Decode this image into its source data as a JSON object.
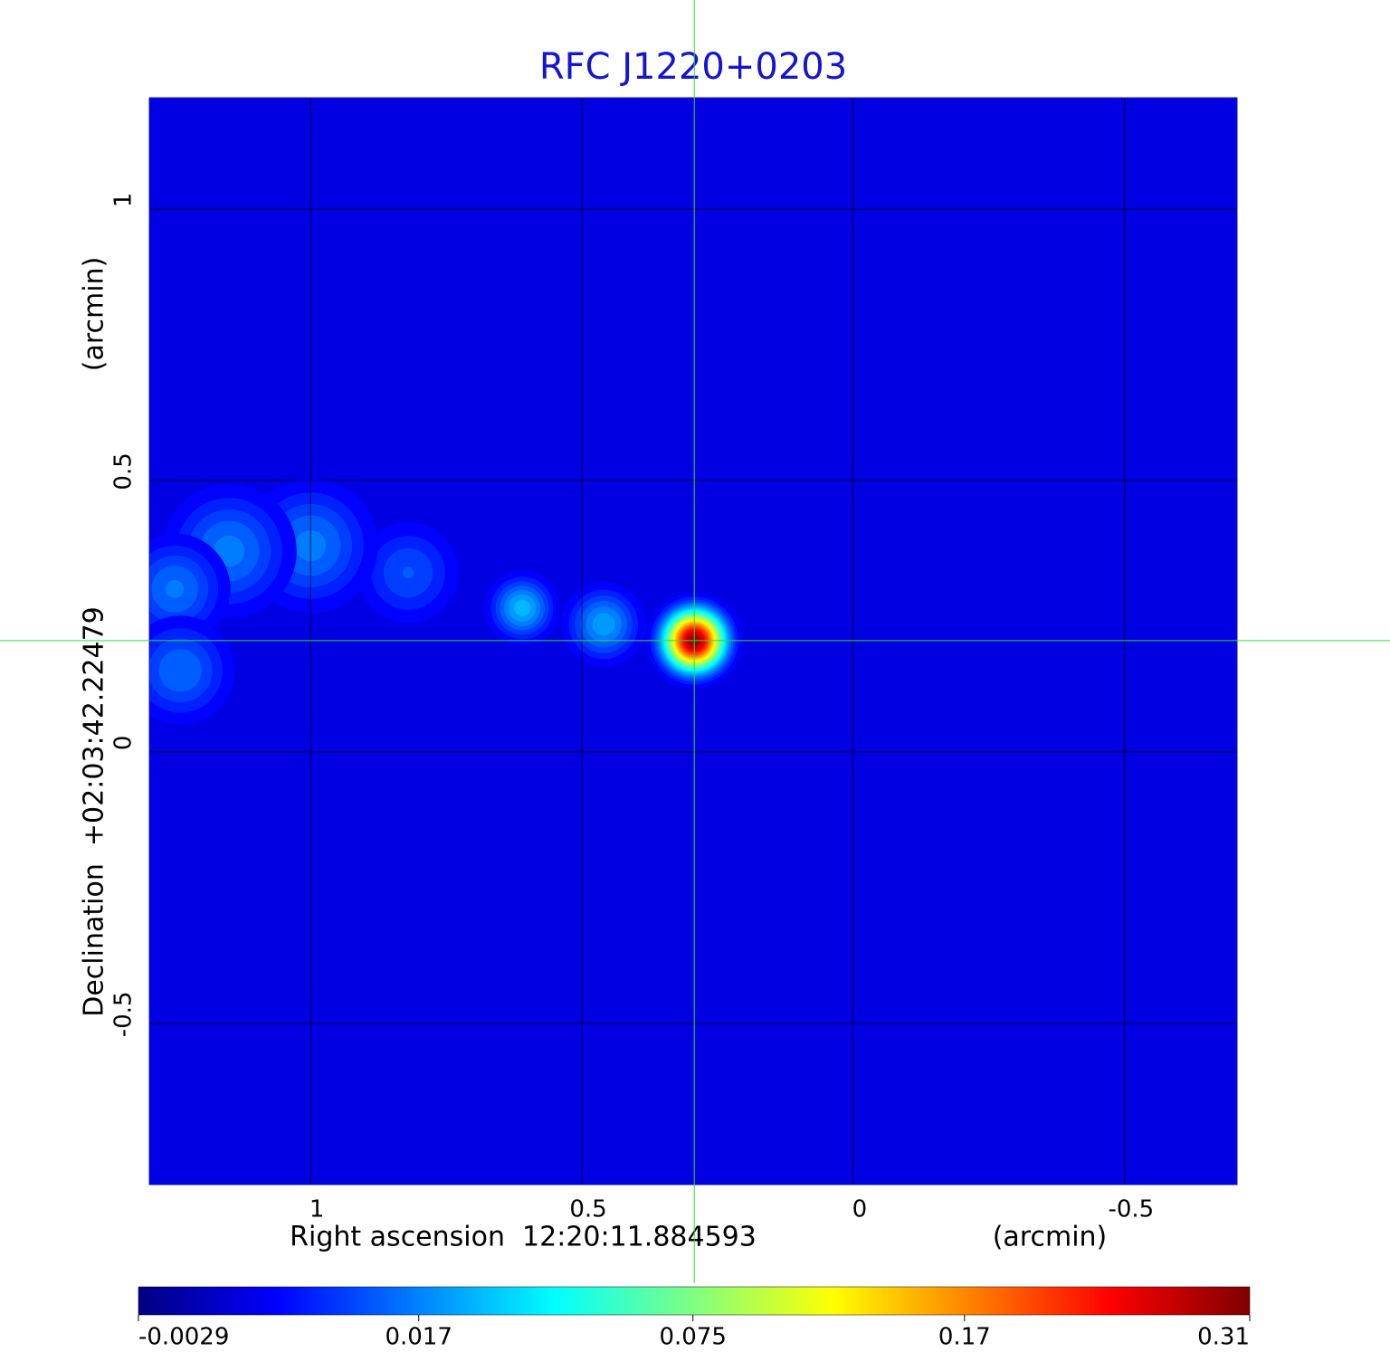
{
  "chart_data": {
    "type": "image",
    "title": "RFC J1220+0203",
    "x_label": "Right ascension  12:20:11.884593",
    "x_unit": "(arcmin)",
    "y_label": "Declination  +02:03:42.22479",
    "y_unit": "(arcmin)",
    "xlim": [
      1.297,
      -0.707
    ],
    "ylim": [
      -0.797,
      1.205
    ],
    "xticks": [
      1.0,
      0.5,
      0.0,
      -0.5
    ],
    "yticks": [
      -0.5,
      0.0,
      0.5,
      1.0
    ],
    "grid": true,
    "crosshair": {
      "x": 0.293,
      "y": 0.205,
      "color": "#33dd33"
    },
    "colormap": "jet",
    "colorbar_scale": "sqrt",
    "clim": [
      -0.0029,
      0.31
    ],
    "colorbar_ticks": [
      -0.0029,
      0.017,
      0.075,
      0.17,
      0.31
    ],
    "sources": [
      {
        "x": 0.293,
        "y": 0.205,
        "peak": 0.31,
        "size": 0.028
      },
      {
        "x": 0.61,
        "y": 0.265,
        "peak": 0.03,
        "size": 0.03
      },
      {
        "x": 0.46,
        "y": 0.235,
        "peak": 0.025,
        "size": 0.035
      },
      {
        "x": 0.82,
        "y": 0.33,
        "peak": 0.012,
        "size": 0.05
      },
      {
        "x": 1.0,
        "y": 0.38,
        "peak": 0.018,
        "size": 0.06
      },
      {
        "x": 1.15,
        "y": 0.37,
        "peak": 0.018,
        "size": 0.06
      },
      {
        "x": 1.25,
        "y": 0.3,
        "peak": 0.017,
        "size": 0.05
      },
      {
        "x": 1.24,
        "y": 0.15,
        "peak": 0.016,
        "size": 0.05
      }
    ]
  }
}
